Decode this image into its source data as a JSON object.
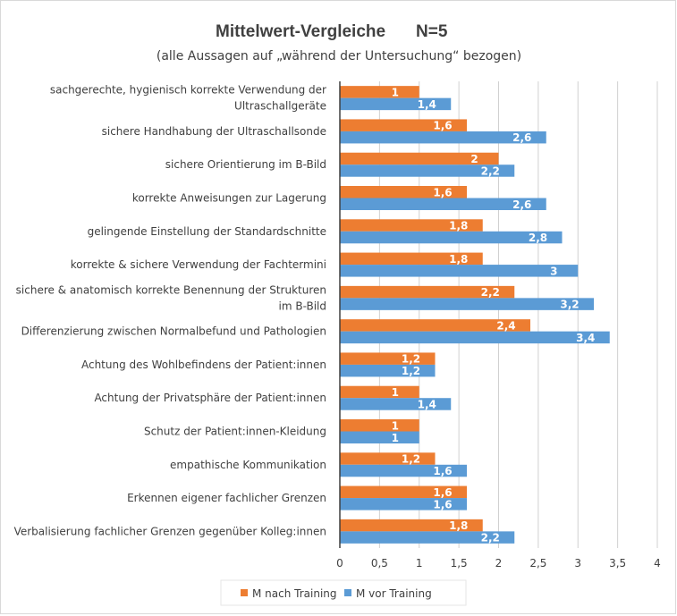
{
  "chart_data": {
    "type": "bar",
    "orientation": "horizontal",
    "title": "Mittelwert-Vergleiche",
    "title_n": "N=5",
    "subtitle": "(alle Aussagen auf „während der Untersuchung“ bezogen)",
    "xlim": [
      0,
      4
    ],
    "xticks": [
      "0",
      "0,5",
      "1",
      "1,5",
      "2",
      "2,5",
      "3",
      "3,5",
      "4"
    ],
    "grid": true,
    "legend_position": "bottom",
    "colors": {
      "nach": "#ed7d31",
      "vor": "#5b9bd5"
    },
    "categories": [
      [
        "sachgerechte, hygienisch korrekte Verwendung der",
        "Ultraschallgeräte"
      ],
      [
        "sichere Handhabung der Ultraschallsonde"
      ],
      [
        "sichere Orientierung im B-Bild"
      ],
      [
        "korrekte Anweisungen zur Lagerung"
      ],
      [
        "gelingende Einstellung der Standardschnitte"
      ],
      [
        "korrekte & sichere Verwendung der Fachtermini"
      ],
      [
        "sichere & anatomisch korrekte Benennung der Strukturen",
        "im B-Bild"
      ],
      [
        "Differenzierung zwischen Normalbefund und Pathologien"
      ],
      [
        "Achtung des Wohlbefindens der Patient:innen"
      ],
      [
        "Achtung der Privatsphäre der Patient:innen"
      ],
      [
        "Schutz der Patient:innen-Kleidung"
      ],
      [
        "empathische Kommunikation"
      ],
      [
        "Erkennen eigener fachlicher Grenzen"
      ],
      [
        "Verbalisierung fachlicher Grenzen gegenüber Kolleg:innen"
      ]
    ],
    "series": [
      {
        "name": "M nach Training",
        "values": [
          1,
          1.6,
          2,
          1.6,
          1.8,
          1.8,
          2.2,
          2.4,
          1.2,
          1,
          1,
          1.2,
          1.6,
          1.8
        ],
        "labels": [
          "1",
          "1,6",
          "2",
          "1,6",
          "1,8",
          "1,8",
          "2,2",
          "2,4",
          "1,2",
          "1",
          "1",
          "1,2",
          "1,6",
          "1,8"
        ]
      },
      {
        "name": "M vor Training",
        "values": [
          1.4,
          2.6,
          2.2,
          2.6,
          2.8,
          3,
          3.2,
          3.4,
          1.2,
          1.4,
          1,
          1.6,
          1.6,
          2.2
        ],
        "labels": [
          "1,4",
          "2,6",
          "2,2",
          "2,6",
          "2,8",
          "3",
          "3,2",
          "3,4",
          "1,2",
          "1,4",
          "1",
          "1,6",
          "1,6",
          "2,2"
        ]
      }
    ]
  }
}
